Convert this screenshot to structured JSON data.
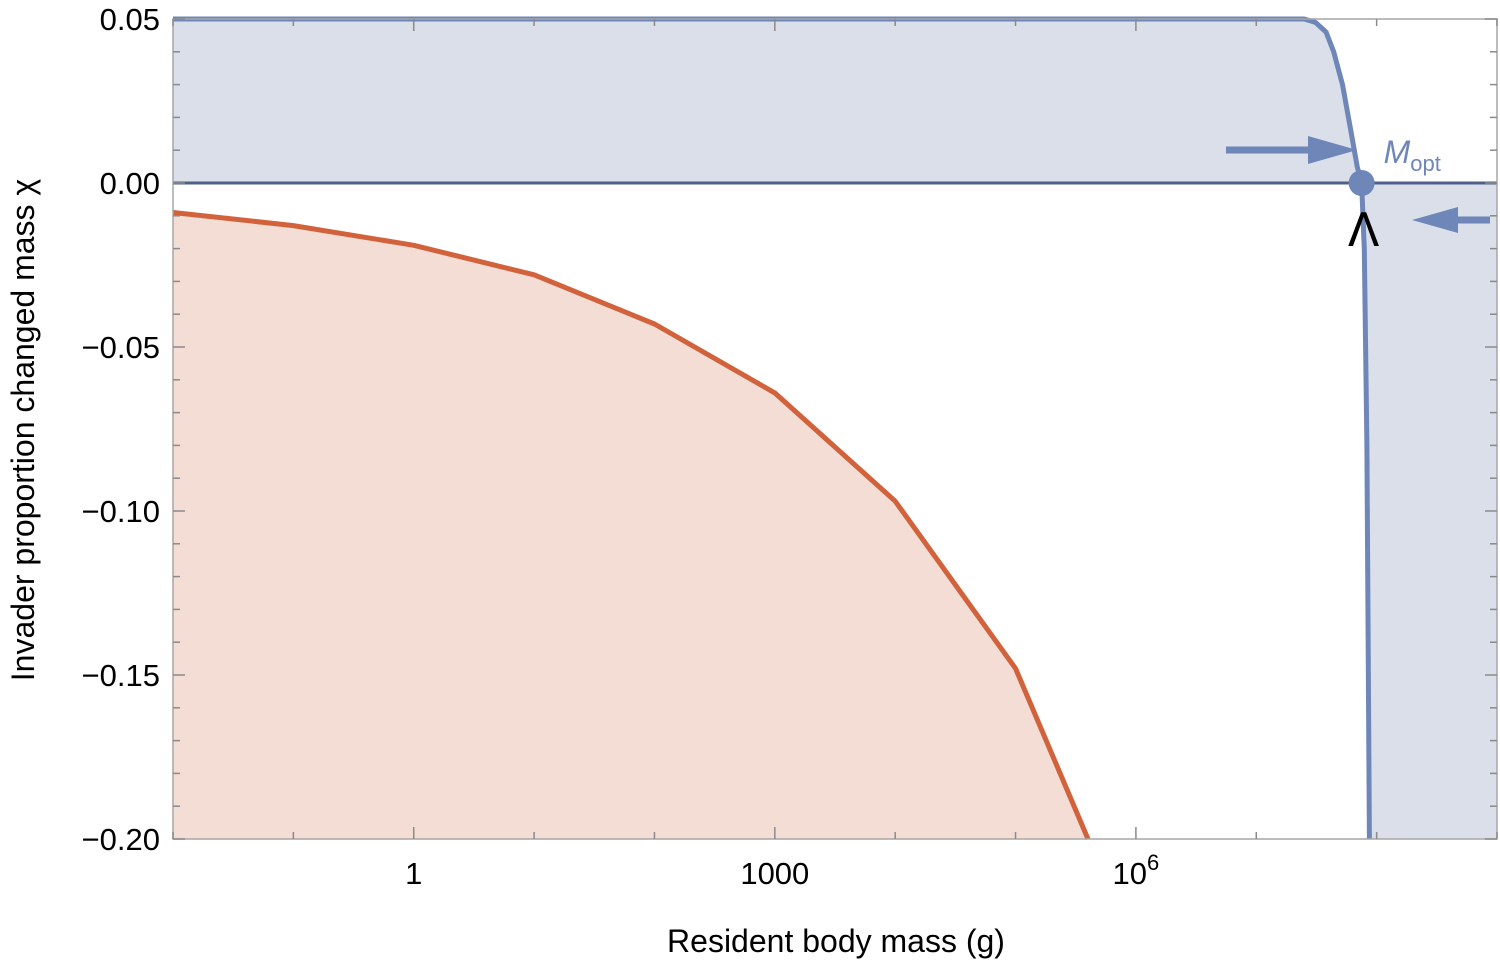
{
  "chart_data": {
    "type": "area",
    "xlabel": "Resident body mass (g)",
    "ylabel": "Invader proportion changed mass χ",
    "x_scale": "log",
    "xlim": [
      0.01,
      1000000000
    ],
    "ylim": [
      -0.2,
      0.05
    ],
    "x_ticks": [
      {
        "value": 1,
        "label": "1"
      },
      {
        "value": 1000,
        "label": "1000"
      },
      {
        "value": 1000000,
        "label": "10",
        "sup": "6"
      }
    ],
    "y_ticks": [
      {
        "value": 0.05,
        "label": "0.05"
      },
      {
        "value": 0.0,
        "label": "0.00"
      },
      {
        "value": -0.05,
        "label": "−0.05"
      },
      {
        "value": -0.1,
        "label": "−0.10"
      },
      {
        "value": -0.15,
        "label": "−0.15"
      },
      {
        "value": -0.2,
        "label": "−0.20"
      }
    ],
    "grid": false,
    "series": [
      {
        "color": "#6f86b9",
        "fill": "#dadfea",
        "x": [
          0.01,
          1,
          1000,
          1000000,
          25000000,
          31000000,
          38000000,
          44000000,
          52000000,
          61000000,
          69000000,
          75000000,
          79000000,
          83000000,
          87000000
        ],
        "y": [
          0.05,
          0.05,
          0.05,
          0.05,
          0.05,
          0.049,
          0.046,
          0.04,
          0.03,
          0.016,
          0.005,
          0.0,
          -0.02,
          -0.08,
          -0.2
        ]
      },
      {
        "color": "#d2623b",
        "fill": "#f4ddd5",
        "x": [
          0.01,
          0.1,
          1,
          10,
          100,
          1000,
          10000,
          100000,
          400000
        ],
        "y": [
          -0.009,
          -0.013,
          -0.019,
          -0.028,
          -0.043,
          -0.064,
          -0.097,
          -0.148,
          -0.2
        ]
      }
    ],
    "annotations": {
      "optimum_label": "M",
      "optimum_subscript": "opt",
      "optimum_x": 75000000,
      "optimum_y": 0.0,
      "marker_label": "Λ",
      "arrow_color": "#6f86b9"
    }
  }
}
